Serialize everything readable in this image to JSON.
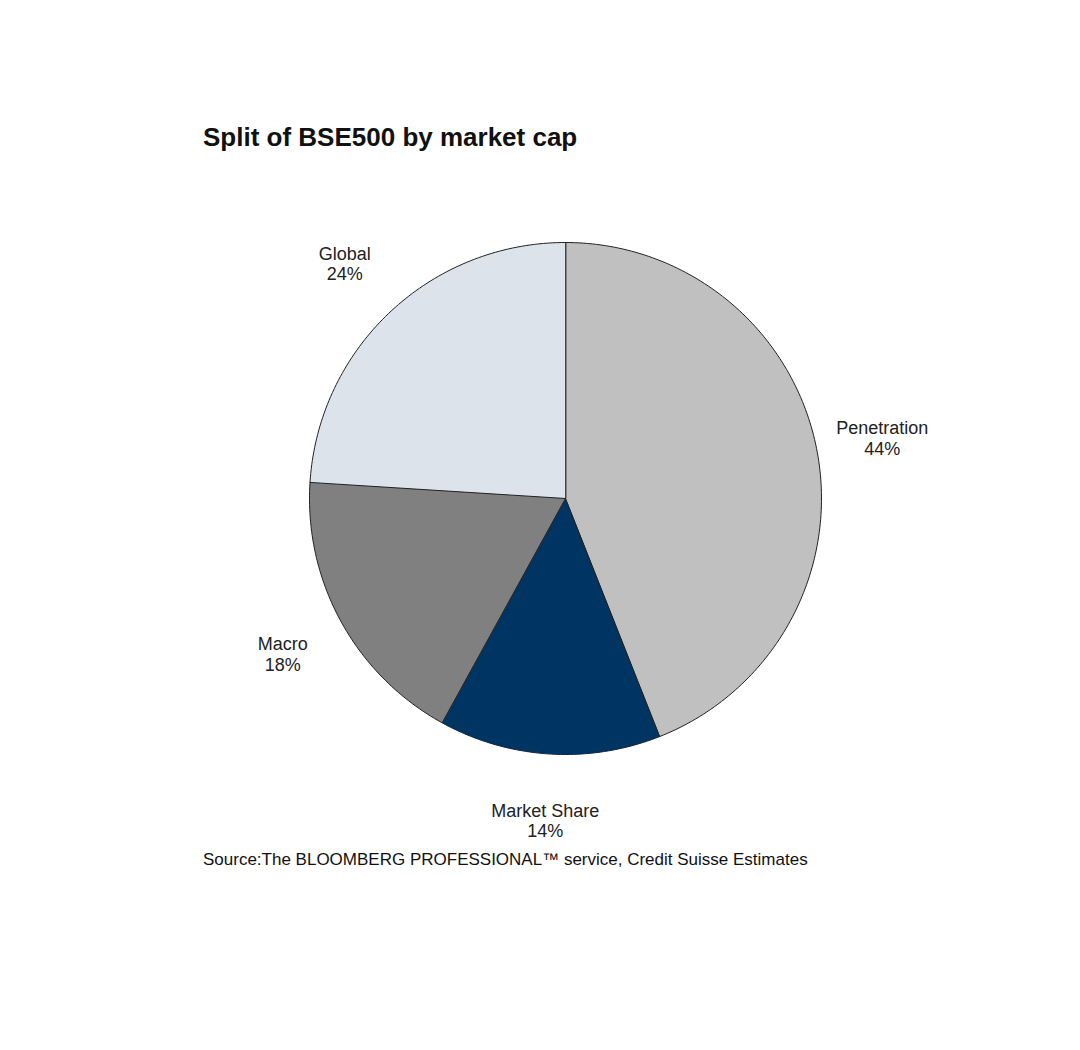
{
  "chart_data": {
    "type": "pie",
    "title": "Split of BSE500 by market cap",
    "caption": "Source:The BLOOMBERG PROFESSIONAL™ service, Credit Suisse Estimates",
    "categories": [
      "Penetration",
      "Market Share",
      "Macro",
      "Global"
    ],
    "values": [
      44,
      14,
      18,
      24
    ],
    "value_labels": [
      "44%",
      "14%",
      "18%",
      "24%"
    ],
    "colors": [
      "#c0c0c0",
      "#003462",
      "#808080",
      "#dce3ea"
    ],
    "data_labels": true,
    "tick_labels": false
  }
}
